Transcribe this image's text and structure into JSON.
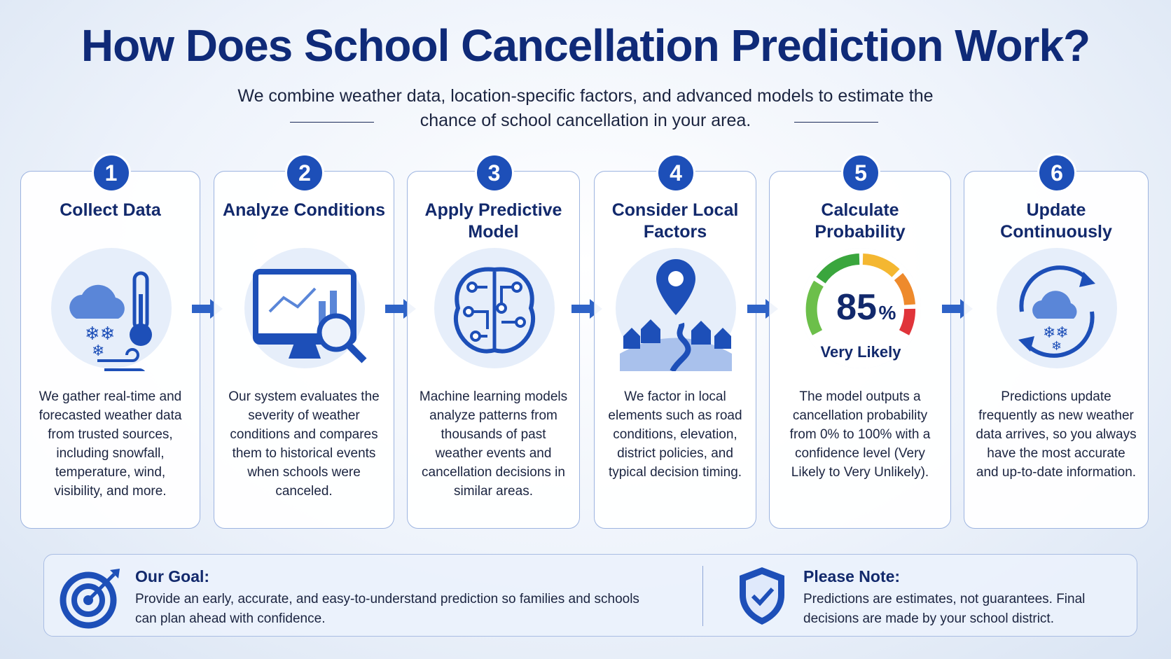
{
  "title": "How Does School Cancellation Prediction Work?",
  "subtitle": "We combine weather data, location-specific factors, and advanced models to estimate the chance of school cancellation in your area.",
  "steps": [
    {
      "number": "1",
      "title": "Collect Data",
      "text": "We gather real-time and forecasted weather data from trusted sources, including snowfall, temperature, wind, visibility, and more."
    },
    {
      "number": "2",
      "title": "Analyze Conditions",
      "text": "Our system evaluates the severity of weather conditions and compares them to historical events when schools were canceled."
    },
    {
      "number": "3",
      "title": "Apply Predictive Model",
      "text": "Machine learning models analyze patterns from thousands of past weather events and cancellation decisions in similar areas."
    },
    {
      "number": "4",
      "title": "Consider Local Factors",
      "text": "We factor in local elements such as road conditions, elevation, district policies, and typical decision timing."
    },
    {
      "number": "5",
      "title": "Calculate Probability",
      "text": "The model outputs a cancellation probability from 0% to 100% with a confidence level (Very Likely to Very Unlikely)."
    },
    {
      "number": "6",
      "title": "Update Continuously",
      "text": "Predictions update frequently as new weather data arrives, so you always have the most accurate and up-to-date information."
    }
  ],
  "gauge": {
    "number": "85",
    "unit": "%",
    "caption": "Very Likely"
  },
  "goal": {
    "title": "Our Goal:",
    "text": "Provide an early, accurate, and easy-to-understand prediction so families and schools can plan ahead with confidence."
  },
  "note": {
    "title": "Please Note:",
    "text": "Predictions are estimates, not guarantees. Final decisions are made by your school district."
  }
}
